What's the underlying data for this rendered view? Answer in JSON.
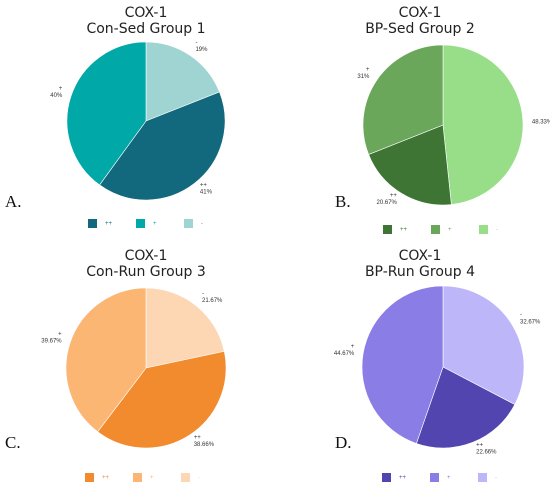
{
  "chart_data": [
    {
      "type": "pie",
      "panel_letter": "A.",
      "title_line1": "COX-1",
      "title_line2": "Con-Sed Group 1",
      "categories": [
        "++",
        "+",
        "-"
      ],
      "values": [
        41,
        40,
        19
      ],
      "value_labels": [
        "41%",
        "40%",
        "19%"
      ],
      "category_labels": [
        "++",
        "+",
        "-"
      ],
      "colors": [
        "#12687c",
        "#00a8a8",
        "#a0d4d2"
      ],
      "legend": [
        "++",
        "+",
        "-"
      ],
      "legend_colors": [
        "#12687c",
        "#00a8a8",
        "#d9534f"
      ]
    },
    {
      "type": "pie",
      "panel_letter": "B.",
      "title_line1": "COX-1",
      "title_line2": "BP-Sed Group 2",
      "categories": [
        "++",
        "+",
        "-"
      ],
      "values": [
        20.67,
        31,
        48.33
      ],
      "value_labels": [
        "20.67%",
        "31%",
        "48.33%"
      ],
      "category_labels": [
        "++",
        "+",
        ""
      ],
      "colors": [
        "#3e7535",
        "#6aa75a",
        "#98de88"
      ],
      "legend": [
        "++",
        "+",
        "-"
      ],
      "legend_colors": [
        "#3e7535",
        "#6aa75a",
        "#98de88"
      ]
    },
    {
      "type": "pie",
      "panel_letter": "C.",
      "title_line1": "COX-1",
      "title_line2": "Con-Run Group 3",
      "categories": [
        "++",
        "+",
        "-"
      ],
      "values": [
        38.66,
        39.67,
        21.67
      ],
      "value_labels": [
        "38.66%",
        "39.67%",
        "21.67%"
      ],
      "category_labels": [
        "++",
        "+",
        "-"
      ],
      "colors": [
        "#f28a2e",
        "#fbb673",
        "#fdd7b4"
      ],
      "legend": [
        "++",
        "+",
        "-"
      ],
      "legend_colors": [
        "#f28a2e",
        "#fbb673",
        "#fdd7b4"
      ]
    },
    {
      "type": "pie",
      "panel_letter": "D.",
      "title_line1": "COX-1",
      "title_line2": "BP-Run Group 4",
      "categories": [
        "++",
        "+",
        "-"
      ],
      "values": [
        22.66,
        44.67,
        32.67
      ],
      "value_labels": [
        "22.66%",
        "44.67%",
        "32.67%"
      ],
      "category_labels": [
        "++",
        "+",
        "-"
      ],
      "colors": [
        "#5245b0",
        "#8a7de6",
        "#bdb6f8"
      ],
      "legend": [
        "++",
        "+",
        "-"
      ],
      "legend_colors": [
        "#5245b0",
        "#8a7de6",
        "#bdb6f8"
      ]
    }
  ]
}
